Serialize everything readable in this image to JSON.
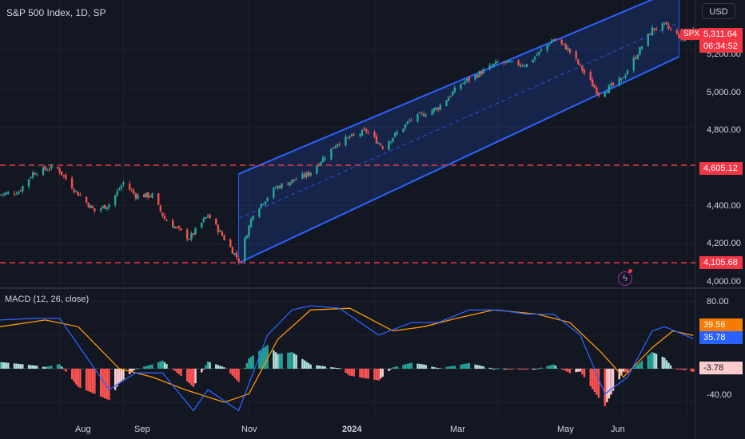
{
  "title": "S&P 500 Index, 1D, SP",
  "currency": "USD",
  "symbol": "SPX",
  "last_price": "5,311.64",
  "countdown": "06:34:52",
  "price_axis": [
    "5,200.00",
    "5,000.00",
    "4,800.00",
    "4,400.00",
    "4,200.00",
    "4,000.00"
  ],
  "time_axis": [
    "Aug",
    "Sep",
    "Nov",
    "2024",
    "Mar",
    "May",
    "Jun"
  ],
  "levels": {
    "upper": "4,605.12",
    "lower": "4,105.68"
  },
  "macd": {
    "title": "MACD (12, 26, close)",
    "axis": [
      "80.00",
      "-40.00"
    ],
    "macd_value": "35.78",
    "signal_value": "39.56",
    "hist_value": "-3.78"
  },
  "colors": {
    "background": "#131722",
    "up": "#26a69a",
    "down": "#ef5350",
    "channel": "#2962ff",
    "level": "#f23645",
    "macd": "#2962ff",
    "signal": "#ff9800"
  },
  "chart_data": [
    {
      "type": "candlestick",
      "title": "S&P 500 Index, 1D, SP",
      "ylim": [
        3980,
        5450
      ],
      "x_range": [
        "2023-07-03",
        "2024-06-05"
      ],
      "series": [
        {
          "name": "SPX",
          "close_path": [
            [
              "2023-07-03",
              4455
            ],
            [
              "2023-07-12",
              4470
            ],
            [
              "2023-07-19",
              4565
            ],
            [
              "2023-07-27",
              4590
            ],
            [
              "2023-07-31",
              4588
            ],
            [
              "2023-08-09",
              4470
            ],
            [
              "2023-08-18",
              4370
            ],
            [
              "2023-08-25",
              4405
            ],
            [
              "2023-09-01",
              4515
            ],
            [
              "2023-09-07",
              4450
            ],
            [
              "2023-09-15",
              4450
            ],
            [
              "2023-09-21",
              4330
            ],
            [
              "2023-10-03",
              4230
            ],
            [
              "2023-10-12",
              4350
            ],
            [
              "2023-10-20",
              4230
            ],
            [
              "2023-10-27",
              4120
            ],
            [
              "2023-11-03",
              4360
            ],
            [
              "2023-11-14",
              4490
            ],
            [
              "2023-11-30",
              4560
            ],
            [
              "2023-12-14",
              4720
            ],
            [
              "2023-12-28",
              4780
            ],
            [
              "2024-01-05",
              4700
            ],
            [
              "2024-01-19",
              4840
            ],
            [
              "2024-02-01",
              4900
            ],
            [
              "2024-02-12",
              5020
            ],
            [
              "2024-03-01",
              5130
            ],
            [
              "2024-03-15",
              5120
            ],
            [
              "2024-03-28",
              5250
            ],
            [
              "2024-04-04",
              5200
            ],
            [
              "2024-04-19",
              4970
            ],
            [
              "2024-04-30",
              5040
            ],
            [
              "2024-05-15",
              5300
            ],
            [
              "2024-05-21",
              5320
            ],
            [
              "2024-05-30",
              5250
            ],
            [
              "2024-06-04",
              5300
            ]
          ]
        }
      ],
      "channel": {
        "upper": [
          [
            "2023-10-27",
            4560
          ],
          [
            "2024-05-28",
            5510
          ]
        ],
        "lower": [
          [
            "2023-10-27",
            4105
          ],
          [
            "2024-05-28",
            5160
          ]
        ]
      },
      "horizontal_levels": [
        4605.12,
        4105.68
      ]
    },
    {
      "type": "macd",
      "title": "MACD (12, 26, close)",
      "ylim": [
        -60,
        95
      ],
      "macd": [
        [
          "2023-07-03",
          58
        ],
        [
          "2023-07-20",
          60
        ],
        [
          "2023-08-01",
          60
        ],
        [
          "2023-08-18",
          0
        ],
        [
          "2023-08-25",
          -25
        ],
        [
          "2023-09-07",
          -5
        ],
        [
          "2023-09-20",
          -5
        ],
        [
          "2023-10-05",
          -50
        ],
        [
          "2023-10-12",
          -25
        ],
        [
          "2023-10-27",
          -50
        ],
        [
          "2023-11-10",
          40
        ],
        [
          "2023-11-22",
          70
        ],
        [
          "2023-12-01",
          75
        ],
        [
          "2023-12-15",
          72
        ],
        [
          "2024-01-03",
          40
        ],
        [
          "2024-01-19",
          55
        ],
        [
          "2024-02-01",
          55
        ],
        [
          "2024-02-16",
          70
        ],
        [
          "2024-03-01",
          70
        ],
        [
          "2024-03-15",
          65
        ],
        [
          "2024-03-28",
          65
        ],
        [
          "2024-04-10",
          40
        ],
        [
          "2024-04-22",
          -30
        ],
        [
          "2024-05-03",
          -10
        ],
        [
          "2024-05-15",
          45
        ],
        [
          "2024-05-21",
          50
        ],
        [
          "2024-06-04",
          35.78
        ]
      ],
      "signal": [
        [
          "2023-07-03",
          50
        ],
        [
          "2023-07-25",
          58
        ],
        [
          "2023-08-10",
          50
        ],
        [
          "2023-08-30",
          0
        ],
        [
          "2023-09-15",
          -10
        ],
        [
          "2023-10-01",
          -25
        ],
        [
          "2023-10-20",
          -40
        ],
        [
          "2023-11-01",
          -30
        ],
        [
          "2023-11-15",
          35
        ],
        [
          "2023-12-01",
          70
        ],
        [
          "2023-12-20",
          72
        ],
        [
          "2024-01-10",
          45
        ],
        [
          "2024-01-25",
          50
        ],
        [
          "2024-02-10",
          60
        ],
        [
          "2024-02-28",
          70
        ],
        [
          "2024-03-20",
          65
        ],
        [
          "2024-04-05",
          55
        ],
        [
          "2024-04-20",
          20
        ],
        [
          "2024-05-01",
          -10
        ],
        [
          "2024-05-15",
          25
        ],
        [
          "2024-05-25",
          45
        ],
        [
          "2024-06-04",
          39.56
        ]
      ],
      "histogram_last": -3.78
    }
  ]
}
